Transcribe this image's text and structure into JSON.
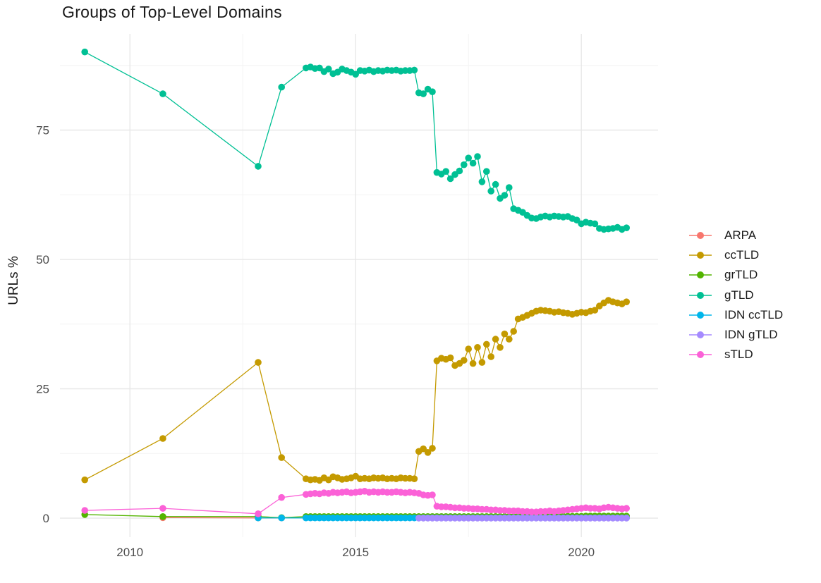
{
  "chart_data": {
    "type": "line",
    "title": "Groups of Top-Level Domains",
    "xlabel": "",
    "ylabel": "URLs %",
    "grid": "major+minor",
    "grid_color_major": "#E8E8E8",
    "grid_color_minor": "#F3F3F3",
    "legend_position": "right",
    "x_axis": {
      "lim": [
        2008.45,
        2021.7
      ],
      "ticks": [
        {
          "value": 2010,
          "label": "2010"
        },
        {
          "value": 2015,
          "label": "2015"
        },
        {
          "value": 2020,
          "label": "2020"
        }
      ],
      "minor": [
        2012.5,
        2017.5
      ]
    },
    "y_axis": {
      "lim": [
        -2.45,
        93.6
      ],
      "ticks": [
        {
          "value": 0,
          "label": "0"
        },
        {
          "value": 25,
          "label": "25"
        },
        {
          "value": 50,
          "label": "50"
        },
        {
          "value": 75,
          "label": "75"
        }
      ],
      "minor": [
        12.5,
        37.5,
        62.5,
        87.5
      ]
    },
    "x_dense": [
      2013.9,
      2014,
      2014.1,
      2014.2,
      2014.3,
      2014.4,
      2014.5,
      2014.6,
      2014.7,
      2014.8,
      2014.9,
      2015,
      2015.1,
      2015.2,
      2015.3,
      2015.4,
      2015.5,
      2015.6,
      2015.7,
      2015.8,
      2015.9,
      2016,
      2016.1,
      2016.2,
      2016.3,
      2016.4,
      2016.5,
      2016.6,
      2016.7,
      2016.8,
      2016.9,
      2017,
      2017.1,
      2017.2,
      2017.3,
      2017.4,
      2017.5,
      2017.6,
      2017.7,
      2017.8,
      2017.9,
      2018,
      2018.1,
      2018.2,
      2018.3,
      2018.4,
      2018.5,
      2018.6,
      2018.7,
      2018.8,
      2018.9,
      2019,
      2019.1,
      2019.2,
      2019.3,
      2019.4,
      2019.5,
      2019.6,
      2019.7,
      2019.8,
      2019.9,
      2020,
      2020.1,
      2020.2,
      2020.3,
      2020.4,
      2020.5,
      2020.6,
      2020.7,
      2020.8,
      2020.9,
      2021
    ],
    "series": [
      {
        "name": "ARPA",
        "color": "#F8766D",
        "prefix": [
          [
            2010.73,
            0.1
          ],
          [
            2012.84,
            0.05
          ],
          [
            2013.36,
            0.05
          ]
        ],
        "dense_y": null
      },
      {
        "name": "ccTLD",
        "color": "#C49A00",
        "prefix": [
          [
            2009,
            7.4
          ],
          [
            2010.73,
            15.4
          ],
          [
            2012.84,
            30.1
          ],
          [
            2013.36,
            11.7
          ]
        ],
        "dense_y": [
          7.6,
          7.4,
          7.5,
          7.3,
          7.8,
          7.4,
          8,
          7.8,
          7.5,
          7.6,
          7.8,
          8.1,
          7.6,
          7.7,
          7.6,
          7.8,
          7.7,
          7.8,
          7.6,
          7.7,
          7.6,
          7.8,
          7.7,
          7.7,
          7.6,
          12.9,
          13.4,
          12.7,
          13.5,
          30.4,
          30.9,
          30.7,
          31,
          29.5,
          29.9,
          30.5,
          32.7,
          29.9,
          33,
          30.1,
          33.6,
          31.2,
          34.6,
          33,
          35.6,
          34.6,
          36.1,
          38.5,
          38.8,
          39.2,
          39.6,
          40,
          40.2,
          40.1,
          40,
          39.8,
          39.9,
          39.7,
          39.6,
          39.4,
          39.6,
          39.8,
          39.7,
          40,
          40.2,
          41,
          41.6,
          42.1,
          41.8,
          41.6,
          41.4,
          41.8
        ]
      },
      {
        "name": "grTLD",
        "color": "#53B400",
        "prefix": [
          [
            2009,
            0.7
          ],
          [
            2010.73,
            0.3
          ],
          [
            2012.84,
            0.3
          ],
          [
            2013.36,
            0.1
          ]
        ],
        "dense_y": [
          0.3,
          0.3,
          0.3,
          0.3,
          0.3,
          0.3,
          0.3,
          0.3,
          0.3,
          0.3,
          0.3,
          0.3,
          0.3,
          0.3,
          0.3,
          0.3,
          0.3,
          0.3,
          0.3,
          0.3,
          0.3,
          0.3,
          0.3,
          0.3,
          0.3,
          0.3,
          0.3,
          0.3,
          0.3,
          0.3,
          0.3,
          0.3,
          0.3,
          0.3,
          0.3,
          0.3,
          0.3,
          0.3,
          0.3,
          0.3,
          0.3,
          0.3,
          0.3,
          0.3,
          0.3,
          0.3,
          0.3,
          0.35,
          0.35,
          0.35,
          0.35,
          0.35,
          0.35,
          0.35,
          0.35,
          0.35,
          0.35,
          0.35,
          0.35,
          0.35,
          0.35,
          0.35,
          0.4,
          0.4,
          0.4,
          0.4,
          0.4,
          0.4,
          0.4,
          0.4,
          0.4,
          0.4
        ]
      },
      {
        "name": "gTLD",
        "color": "#00C094",
        "prefix": [
          [
            2009,
            90.1
          ],
          [
            2010.73,
            82
          ],
          [
            2012.84,
            68
          ],
          [
            2013.36,
            83.3
          ]
        ],
        "dense_y": [
          87,
          87.2,
          86.9,
          87,
          86.3,
          86.8,
          85.9,
          86.2,
          86.8,
          86.5,
          86.2,
          85.8,
          86.5,
          86.4,
          86.6,
          86.3,
          86.5,
          86.4,
          86.6,
          86.5,
          86.6,
          86.4,
          86.5,
          86.5,
          86.6,
          82.2,
          82,
          82.9,
          82.4,
          66.8,
          66.5,
          67,
          65.6,
          66.4,
          67.1,
          68.3,
          69.6,
          68.6,
          69.9,
          65,
          67,
          63.2,
          64.5,
          61.8,
          62.4,
          63.9,
          59.8,
          59.5,
          59.1,
          58.5,
          58,
          57.9,
          58.2,
          58.4,
          58.2,
          58.4,
          58.3,
          58.2,
          58.3,
          57.9,
          57.6,
          56.9,
          57.2,
          57,
          56.9,
          56,
          55.8,
          55.9,
          56,
          56.2,
          55.8,
          56.1
        ]
      },
      {
        "name": "IDN ccTLD",
        "color": "#00B6EB",
        "prefix": [
          [
            2012.84,
            0.05
          ],
          [
            2013.36,
            0.05
          ]
        ],
        "dense_y": 0.05
      },
      {
        "name": "IDN gTLD",
        "color": "#A58AFF",
        "prefix": [],
        "dense_y": [
          null,
          null,
          null,
          null,
          null,
          null,
          null,
          null,
          null,
          null,
          null,
          null,
          null,
          null,
          null,
          null,
          null,
          null,
          null,
          null,
          null,
          null,
          null,
          null,
          null,
          0.02,
          0.02,
          0.02,
          0.02,
          0.02,
          0.02,
          0.02,
          0.02,
          0.02,
          0.02,
          0.02,
          0.02,
          0.02,
          0.02,
          0.02,
          0.02,
          0.02,
          0.02,
          0.02,
          0.02,
          0.02,
          0.02,
          0.02,
          0.02,
          0.02,
          0.02,
          0.02,
          0.02,
          0.02,
          0.02,
          0.02,
          0.02,
          0.02,
          0.02,
          0.02,
          0.02,
          0.02,
          0.02,
          0.02,
          0.02,
          0.02,
          0.02,
          0.02,
          0.02,
          0.02,
          0.02,
          0.02
        ]
      },
      {
        "name": "sTLD",
        "color": "#FB61D7",
        "prefix": [
          [
            2009,
            1.5
          ],
          [
            2010.73,
            1.9
          ],
          [
            2012.84,
            0.85
          ],
          [
            2013.36,
            4
          ]
        ],
        "dense_y": [
          4.6,
          4.7,
          4.8,
          4.7,
          4.9,
          4.8,
          5,
          4.9,
          5,
          5.1,
          4.9,
          5,
          5.1,
          5.2,
          5,
          5.1,
          5,
          5.1,
          5,
          5,
          5.1,
          5,
          4.9,
          5,
          4.9,
          4.8,
          4.5,
          4.4,
          4.5,
          2.3,
          2.2,
          2.2,
          2.1,
          2,
          2,
          1.9,
          1.9,
          1.8,
          1.8,
          1.7,
          1.7,
          1.6,
          1.6,
          1.5,
          1.5,
          1.4,
          1.4,
          1.4,
          1.3,
          1.3,
          1.2,
          1.2,
          1.3,
          1.3,
          1.4,
          1.3,
          1.4,
          1.5,
          1.6,
          1.7,
          1.8,
          1.9,
          2,
          1.9,
          1.9,
          1.8,
          2,
          2.1,
          2,
          1.9,
          1.8,
          1.9
        ]
      }
    ]
  }
}
